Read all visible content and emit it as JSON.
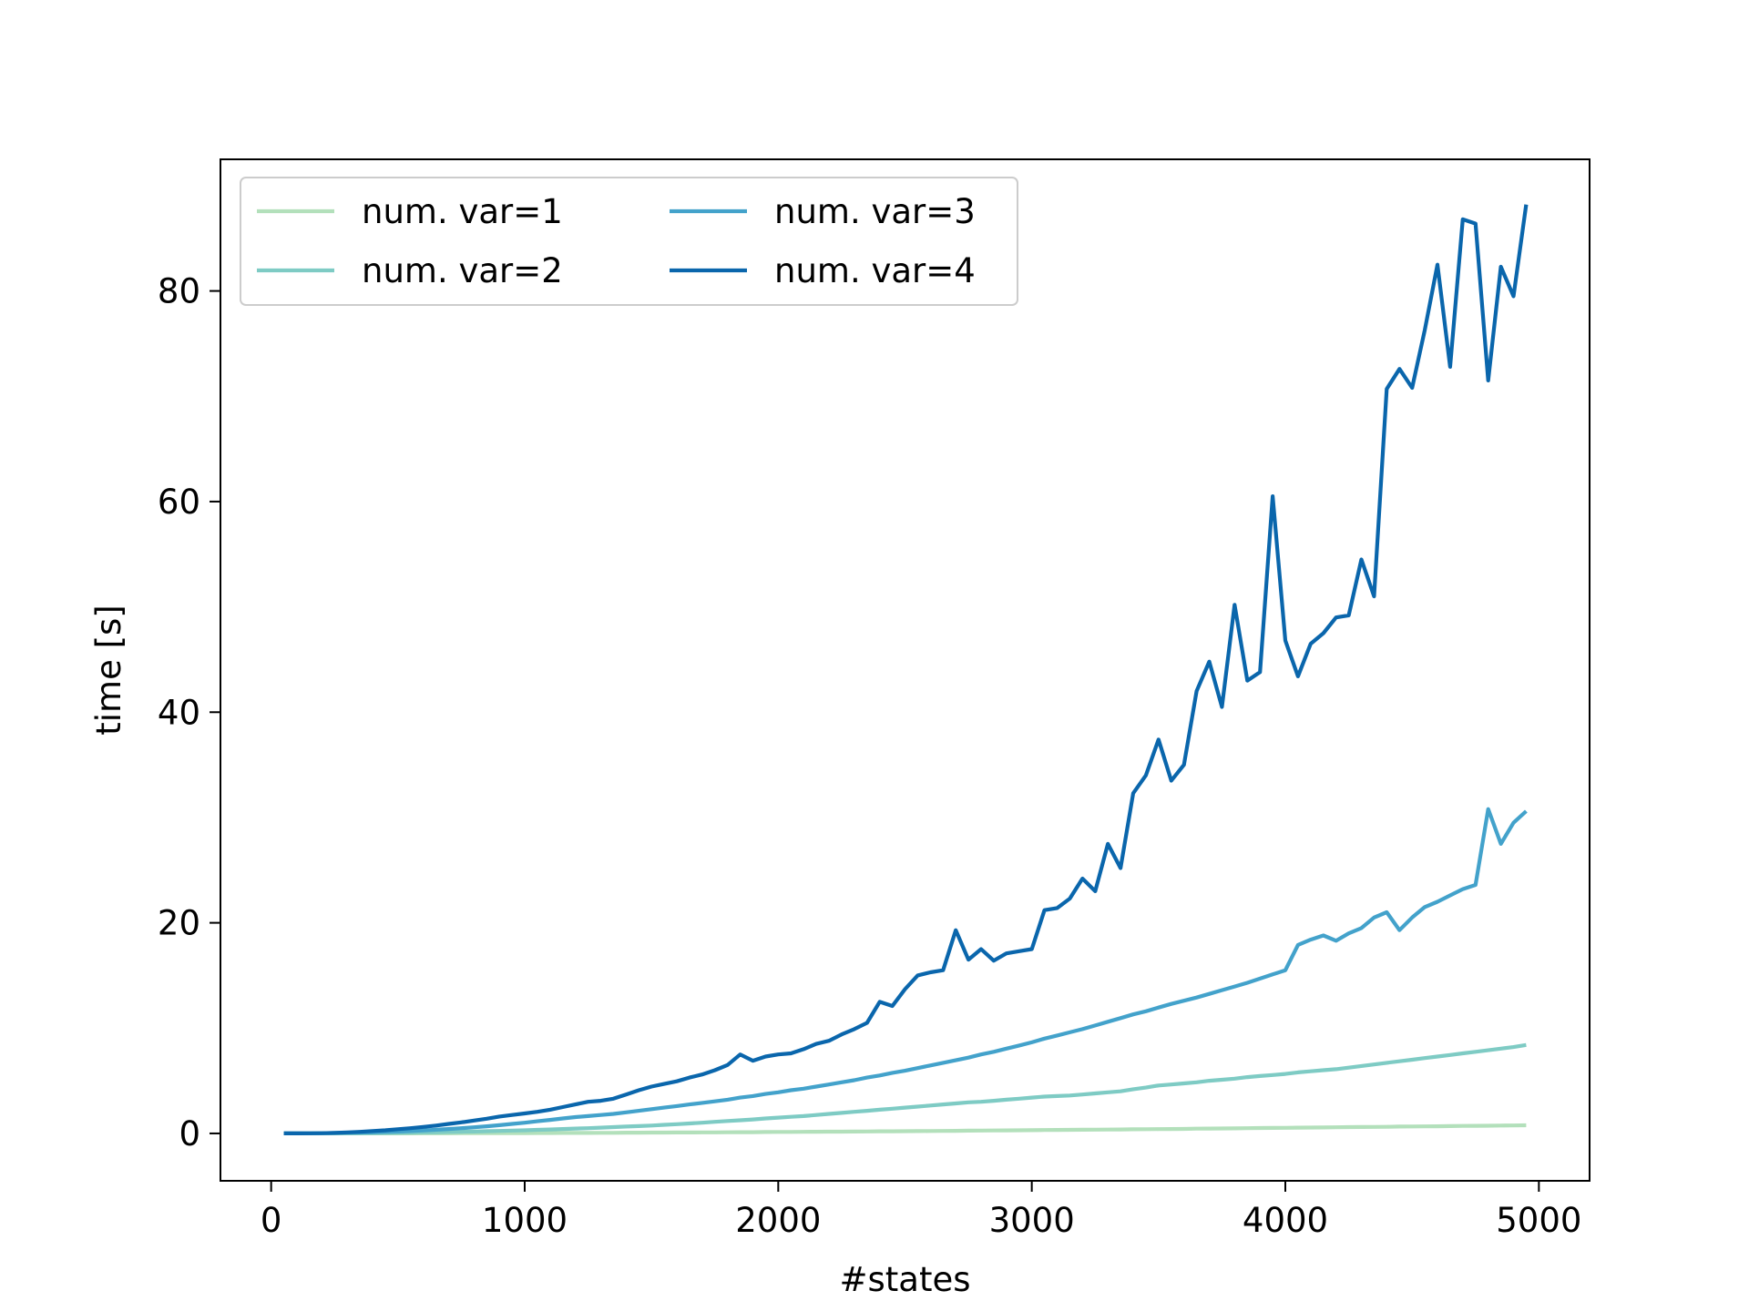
{
  "chart_data": {
    "type": "line",
    "title": "",
    "xlabel": "#states",
    "ylabel": "time [s]",
    "xlim": [
      -200,
      5200
    ],
    "ylim": [
      -4.5,
      92.5
    ],
    "xticks": [
      0,
      1000,
      2000,
      3000,
      4000,
      5000
    ],
    "xtick_labels": [
      "0",
      "1000",
      "2000",
      "3000",
      "4000",
      "5000"
    ],
    "yticks": [
      0,
      20,
      40,
      60,
      80
    ],
    "ytick_labels": [
      "0",
      "20",
      "40",
      "60",
      "80"
    ],
    "grid": false,
    "legend_position": "upper-left",
    "legend_columns": 2,
    "x": [
      50,
      100,
      150,
      200,
      250,
      300,
      350,
      400,
      450,
      500,
      550,
      600,
      650,
      700,
      750,
      800,
      850,
      900,
      950,
      1000,
      1050,
      1100,
      1150,
      1200,
      1250,
      1300,
      1350,
      1400,
      1450,
      1500,
      1550,
      1600,
      1650,
      1700,
      1750,
      1800,
      1850,
      1900,
      1950,
      2000,
      2050,
      2100,
      2150,
      2200,
      2250,
      2300,
      2350,
      2400,
      2450,
      2500,
      2550,
      2600,
      2650,
      2700,
      2750,
      2800,
      2850,
      2900,
      2950,
      3000,
      3050,
      3100,
      3150,
      3200,
      3250,
      3300,
      3350,
      3400,
      3450,
      3500,
      3550,
      3600,
      3650,
      3700,
      3750,
      3800,
      3850,
      3900,
      3950,
      4000,
      4050,
      4100,
      4150,
      4200,
      4250,
      4300,
      4350,
      4400,
      4450,
      4500,
      4550,
      4600,
      4650,
      4700,
      4750,
      4800,
      4850,
      4900,
      4950
    ],
    "series": [
      {
        "name": "num. var=1",
        "color": "#b3e0bb",
        "values": [
          0,
          0,
          0,
          0,
          0,
          0,
          0,
          0,
          0,
          0,
          0,
          0.01,
          0.01,
          0.01,
          0.02,
          0.02,
          0.02,
          0.03,
          0.03,
          0.03,
          0.04,
          0.04,
          0.05,
          0.05,
          0.05,
          0.06,
          0.06,
          0.07,
          0.07,
          0.08,
          0.08,
          0.09,
          0.09,
          0.1,
          0.1,
          0.11,
          0.12,
          0.12,
          0.13,
          0.14,
          0.14,
          0.15,
          0.16,
          0.17,
          0.17,
          0.18,
          0.19,
          0.2,
          0.2,
          0.21,
          0.22,
          0.23,
          0.24,
          0.25,
          0.26,
          0.27,
          0.28,
          0.29,
          0.3,
          0.31,
          0.32,
          0.33,
          0.34,
          0.35,
          0.36,
          0.37,
          0.38,
          0.39,
          0.4,
          0.41,
          0.42,
          0.43,
          0.45,
          0.46,
          0.47,
          0.48,
          0.5,
          0.51,
          0.52,
          0.53,
          0.55,
          0.56,
          0.57,
          0.58,
          0.6,
          0.61,
          0.62,
          0.63,
          0.65,
          0.66,
          0.67,
          0.68,
          0.7,
          0.71,
          0.72,
          0.73,
          0.75,
          0.76,
          0.77
        ]
      },
      {
        "name": "num. var=2",
        "color": "#7ecbc4",
        "values": [
          0,
          0,
          0,
          0.01,
          0.01,
          0.02,
          0.03,
          0.04,
          0.05,
          0.06,
          0.08,
          0.1,
          0.12,
          0.14,
          0.16,
          0.18,
          0.21,
          0.24,
          0.27,
          0.3,
          0.34,
          0.38,
          0.42,
          0.46,
          0.5,
          0.55,
          0.6,
          0.65,
          0.7,
          0.75,
          0.82,
          0.88,
          0.95,
          1.02,
          1.1,
          1.18,
          1.25,
          1.33,
          1.42,
          1.5,
          1.58,
          1.65,
          1.75,
          1.85,
          1.95,
          2.05,
          2.15,
          2.25,
          2.35,
          2.45,
          2.55,
          2.65,
          2.75,
          2.85,
          2.95,
          3.0,
          3.1,
          3.2,
          3.3,
          3.4,
          3.5,
          3.55,
          3.6,
          3.7,
          3.8,
          3.9,
          4.0,
          4.2,
          4.35,
          4.55,
          4.65,
          4.75,
          4.85,
          5.0,
          5.1,
          5.2,
          5.35,
          5.45,
          5.55,
          5.65,
          5.8,
          5.9,
          6.0,
          6.1,
          6.25,
          6.4,
          6.55,
          6.7,
          6.85,
          7.0,
          7.15,
          7.3,
          7.45,
          7.6,
          7.75,
          7.9,
          8.05,
          8.2,
          8.4
        ]
      },
      {
        "name": "num. var=3",
        "color": "#43a2cb",
        "values": [
          0,
          0,
          0.01,
          0.02,
          0.04,
          0.06,
          0.08,
          0.1,
          0.14,
          0.18,
          0.23,
          0.28,
          0.35,
          0.42,
          0.5,
          0.58,
          0.68,
          0.78,
          0.9,
          1.02,
          1.15,
          1.28,
          1.42,
          1.55,
          1.65,
          1.75,
          1.85,
          2.0,
          2.15,
          2.3,
          2.45,
          2.6,
          2.75,
          2.9,
          3.05,
          3.2,
          3.4,
          3.55,
          3.75,
          3.9,
          4.1,
          4.25,
          4.45,
          4.65,
          4.85,
          5.05,
          5.3,
          5.5,
          5.75,
          5.95,
          6.2,
          6.45,
          6.7,
          6.95,
          7.2,
          7.5,
          7.75,
          8.05,
          8.35,
          8.65,
          9.0,
          9.3,
          9.6,
          9.9,
          10.25,
          10.6,
          10.95,
          11.3,
          11.6,
          11.95,
          12.3,
          12.6,
          12.9,
          13.25,
          13.6,
          13.95,
          14.3,
          14.7,
          15.1,
          15.5,
          17.9,
          18.4,
          18.8,
          18.3,
          19.0,
          19.5,
          20.5,
          21.0,
          19.3,
          20.5,
          21.5,
          22.0,
          22.6,
          23.2,
          23.6,
          30.8,
          27.5,
          29.5,
          30.6
        ]
      },
      {
        "name": "num. var=4",
        "color": "#0a66ac",
        "values": [
          0,
          0,
          0.01,
          0.02,
          0.05,
          0.1,
          0.15,
          0.23,
          0.3,
          0.4,
          0.5,
          0.62,
          0.75,
          0.9,
          1.05,
          1.22,
          1.4,
          1.6,
          1.75,
          1.9,
          2.05,
          2.25,
          2.5,
          2.75,
          3.0,
          3.1,
          3.3,
          3.7,
          4.1,
          4.45,
          4.7,
          4.95,
          5.3,
          5.6,
          6.0,
          6.5,
          7.5,
          6.9,
          7.3,
          7.5,
          7.6,
          8.0,
          8.5,
          8.8,
          9.4,
          9.9,
          10.5,
          12.5,
          12.1,
          13.7,
          15.0,
          15.3,
          15.5,
          19.3,
          16.5,
          17.5,
          16.4,
          17.1,
          17.3,
          17.5,
          21.2,
          21.4,
          22.3,
          24.2,
          23.0,
          27.5,
          25.2,
          32.3,
          34.0,
          37.4,
          33.5,
          35.0,
          42.0,
          44.8,
          40.5,
          50.2,
          43.0,
          43.8,
          60.5,
          46.8,
          43.4,
          46.5,
          47.5,
          49.0,
          49.2,
          54.5,
          51.0,
          70.7,
          72.6,
          70.8,
          76.3,
          82.5,
          72.8,
          86.8,
          86.4,
          71.5,
          82.3,
          79.5,
          88.2
        ]
      }
    ]
  }
}
